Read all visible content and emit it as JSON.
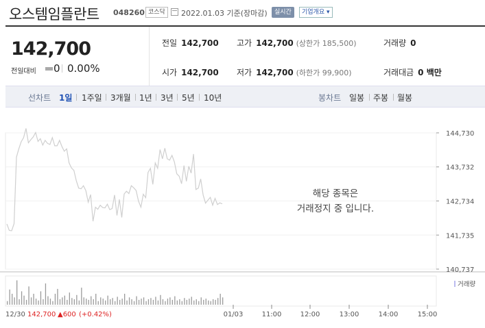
{
  "header": {
    "name": "오스템임플란트",
    "code": "048260",
    "market": "코스닥",
    "date": "2022.01.03 기준(장마감)",
    "realtime": "실시간",
    "company_info": "기업개요 ▾"
  },
  "price": {
    "current": "142,700",
    "change_label": "전일대비",
    "change": "0",
    "change_pct": "0.00%"
  },
  "stats": {
    "prev_label": "전일",
    "prev": "142,700",
    "high_label": "고가",
    "high": "142,700",
    "high_sub": "(상한가 185,500)",
    "vol_label": "거래량",
    "vol": "0",
    "open_label": "시가",
    "open": "142,700",
    "low_label": "저가",
    "low": "142,700",
    "low_sub": "(하한가 99,900)",
    "amt_label": "거래대금",
    "amt": "0 백만"
  },
  "period_bar": {
    "line_label": "선차트",
    "periods": [
      "1일",
      "1주일",
      "3개월",
      "1년",
      "3년",
      "5년",
      "10년"
    ],
    "active": "1일",
    "candle_label": "봉차트",
    "candles": [
      "일봉",
      "주봉",
      "월봉"
    ]
  },
  "chart_data": {
    "type": "line",
    "title": "",
    "y_ticks": [
      "144,730",
      "143,732",
      "142,734",
      "141,735",
      "140,737"
    ],
    "ylim": [
      140737,
      144730
    ],
    "x_ticks": [
      "12/30",
      "01/03",
      "11:00",
      "12:00",
      "13:00",
      "14:00",
      "15:00"
    ],
    "halt_message": [
      "해당 종목은",
      "거래정지 중 입니다."
    ],
    "volume_label": "거래량",
    "footer": {
      "date": "12/30",
      "price": "142,700",
      "change": "▲600",
      "pct": "(+0.42%)"
    },
    "series": [
      {
        "values": [
          142060,
          141870,
          141860,
          142070,
          144020,
          144260,
          144470,
          144590,
          144860,
          144440,
          144530,
          144610,
          144740,
          144480,
          144560,
          144370,
          144510,
          144420,
          144390,
          144590,
          144350,
          144350,
          144510,
          144330,
          144190,
          144260,
          143850,
          143700,
          143630,
          143330,
          143110,
          143090,
          143180,
          143040,
          142700,
          142920,
          142140,
          142550,
          142490,
          142610,
          142540,
          142530,
          142640,
          142480,
          142510,
          142910,
          142310,
          142780,
          142250,
          142940,
          143020,
          142950,
          143180,
          143120,
          143040,
          142730,
          142550,
          142930,
          142830,
          143570,
          143690,
          143220,
          143850,
          143690,
          144240,
          143970,
          144280,
          143970,
          143930,
          144070,
          143880,
          143530,
          143460,
          143240,
          143770,
          143310,
          143750,
          143550,
          144110,
          143070,
          143110,
          143380,
          142910,
          142670,
          142760,
          142840,
          142610,
          142810,
          142630,
          142680,
          142650
        ]
      }
    ],
    "volume": [
      6,
      25,
      18,
      12,
      40,
      9,
      22,
      15,
      8,
      30,
      12,
      18,
      10,
      7,
      22,
      9,
      35,
      14,
      10,
      6,
      18,
      26,
      9,
      12,
      15,
      8,
      20,
      11,
      9,
      16,
      7,
      28,
      12,
      10,
      8,
      14,
      9,
      18,
      6,
      12,
      10,
      7,
      15,
      9,
      11,
      6,
      13,
      8,
      10,
      18,
      7,
      12,
      9,
      6,
      14,
      8,
      10,
      12,
      6,
      9,
      11,
      8,
      13,
      7,
      16,
      9,
      6,
      10,
      12,
      8,
      14,
      7,
      9,
      6,
      11,
      8,
      10,
      13,
      7,
      9,
      6,
      12,
      8,
      10,
      7,
      6,
      9,
      8,
      11,
      18,
      12
    ],
    "volume_max": 45
  }
}
